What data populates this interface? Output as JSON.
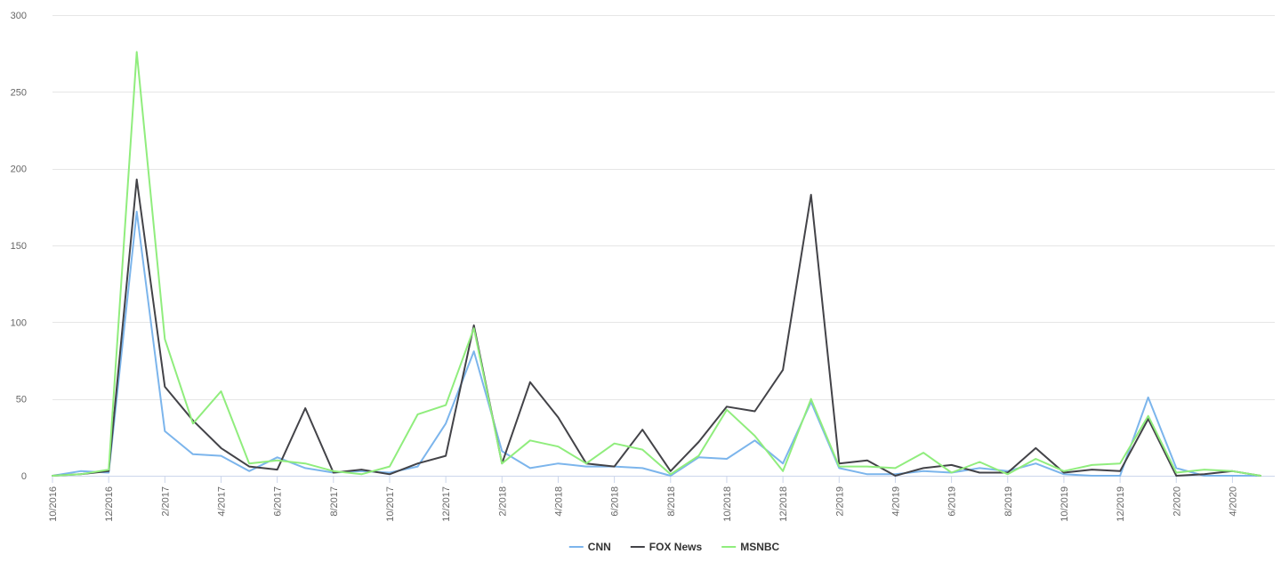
{
  "chart_data": {
    "type": "line",
    "x": [
      "10/2016",
      "11/2016",
      "12/2016",
      "1/2017",
      "2/2017",
      "3/2017",
      "4/2017",
      "5/2017",
      "6/2017",
      "7/2017",
      "8/2017",
      "9/2017",
      "10/2017",
      "11/2017",
      "12/2017",
      "1/2018",
      "2/2018",
      "3/2018",
      "4/2018",
      "5/2018",
      "6/2018",
      "7/2018",
      "8/2018",
      "9/2018",
      "10/2018",
      "11/2018",
      "12/2018",
      "1/2019",
      "2/2019",
      "3/2019",
      "4/2019",
      "5/2019",
      "6/2019",
      "7/2019",
      "8/2019",
      "9/2019",
      "10/2019",
      "11/2019",
      "12/2019",
      "1/2020",
      "2/2020",
      "3/2020",
      "4/2020",
      "5/2020"
    ],
    "x_tick_labels": [
      "10/2016",
      "12/2016",
      "2/2017",
      "4/2017",
      "6/2017",
      "8/2017",
      "10/2017",
      "12/2017",
      "2/2018",
      "4/2018",
      "6/2018",
      "8/2018",
      "10/2018",
      "12/2018",
      "2/2019",
      "4/2019",
      "6/2019",
      "8/2019",
      "10/2019",
      "12/2019",
      "2/2020",
      "4/2020"
    ],
    "ylim": [
      0,
      300
    ],
    "y_ticks": [
      0,
      50,
      100,
      150,
      200,
      250,
      300
    ],
    "grid": true,
    "legend": "bottom-center",
    "series": [
      {
        "name": "CNN",
        "color": "#7cb5ec",
        "values": [
          0,
          3,
          2,
          172,
          29,
          14,
          13,
          3,
          12,
          5,
          2,
          3,
          2,
          6,
          34,
          81,
          16,
          5,
          8,
          6,
          6,
          5,
          0,
          12,
          11,
          23,
          8,
          48,
          5,
          1,
          1,
          3,
          2,
          5,
          3,
          8,
          1,
          0,
          0,
          51,
          5,
          0,
          0,
          0
        ]
      },
      {
        "name": "FOX News",
        "color": "#434348",
        "values": [
          0,
          1,
          3,
          193,
          58,
          36,
          18,
          6,
          4,
          44,
          2,
          4,
          1,
          8,
          13,
          98,
          8,
          61,
          38,
          8,
          6,
          30,
          3,
          22,
          45,
          42,
          69,
          183,
          8,
          10,
          0,
          5,
          7,
          2,
          2,
          18,
          2,
          4,
          3,
          37,
          0,
          1,
          3,
          0
        ]
      },
      {
        "name": "MSNBC",
        "color": "#90ed7d",
        "values": [
          0,
          1,
          4,
          276,
          89,
          34,
          55,
          8,
          10,
          8,
          3,
          1,
          6,
          40,
          46,
          96,
          8,
          23,
          19,
          8,
          21,
          17,
          1,
          13,
          43,
          26,
          3,
          50,
          6,
          6,
          5,
          15,
          2,
          9,
          1,
          11,
          3,
          7,
          8,
          39,
          2,
          4,
          3,
          0
        ]
      }
    ]
  }
}
